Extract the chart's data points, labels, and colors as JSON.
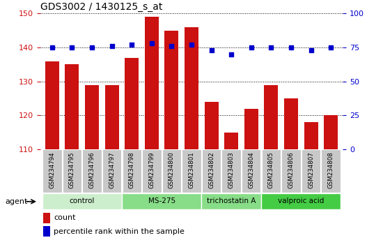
{
  "title": "GDS3002 / 1430125_s_at",
  "samples": [
    "GSM234794",
    "GSM234795",
    "GSM234796",
    "GSM234797",
    "GSM234798",
    "GSM234799",
    "GSM234800",
    "GSM234801",
    "GSM234802",
    "GSM234803",
    "GSM234804",
    "GSM234805",
    "GSM234806",
    "GSM234807",
    "GSM234808"
  ],
  "bar_values": [
    136,
    135,
    129,
    129,
    137,
    149,
    145,
    146,
    124,
    115,
    122,
    129,
    125,
    118,
    120
  ],
  "percentile_values": [
    75,
    75,
    75,
    76,
    77,
    78,
    76,
    77,
    73,
    70,
    75,
    75,
    75,
    73,
    75
  ],
  "bar_color": "#cc1111",
  "dot_color": "#0000cc",
  "ylim_left": [
    110,
    150
  ],
  "ylim_right": [
    0,
    100
  ],
  "yticks_left": [
    110,
    120,
    130,
    140,
    150
  ],
  "yticks_right": [
    0,
    25,
    50,
    75,
    100
  ],
  "groups": [
    {
      "label": "control",
      "start": 0,
      "end": 4
    },
    {
      "label": "MS-275",
      "start": 4,
      "end": 8
    },
    {
      "label": "trichostatin A",
      "start": 8,
      "end": 11
    },
    {
      "label": "valproic acid",
      "start": 11,
      "end": 15
    }
  ],
  "group_colors": [
    "#cceecc",
    "#88dd88",
    "#88dd88",
    "#44cc44"
  ],
  "legend_items": [
    {
      "label": "count",
      "color": "#cc1111"
    },
    {
      "label": "percentile rank within the sample",
      "color": "#0000cc"
    }
  ],
  "tick_label_bg": "#c8c8c8",
  "axis_color_left": "#cc1111",
  "axis_color_right": "#0000cc",
  "grid_color": "#000000"
}
